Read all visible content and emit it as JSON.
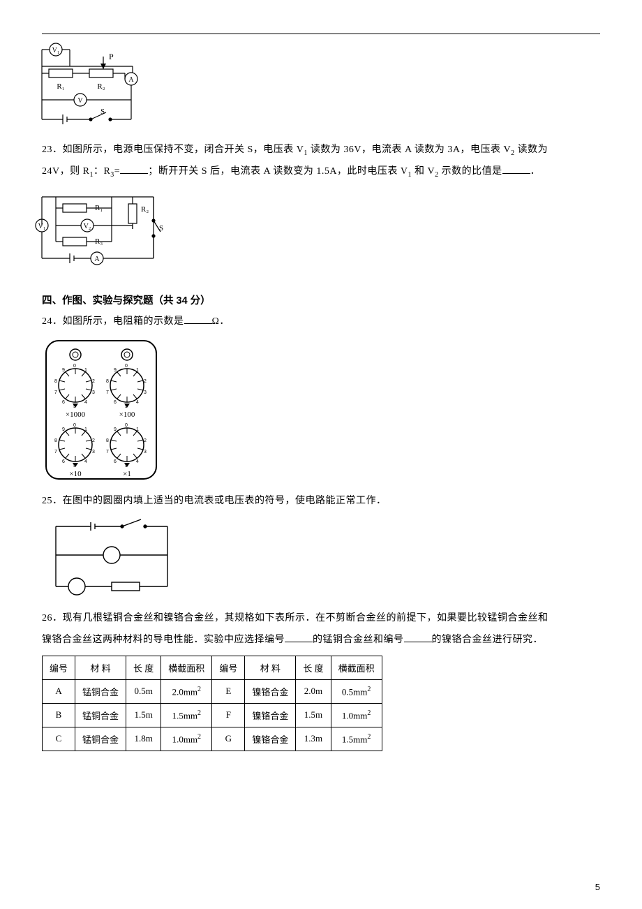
{
  "page_number": "5",
  "circuit22": {
    "labels": {
      "v1": "V₁",
      "p": "P",
      "r1": "R₁",
      "r2": "R₂",
      "a": "A",
      "v": "V",
      "s": "S"
    }
  },
  "q23": {
    "num": "23．",
    "line1_a": "如图所示，电源电压保持不变，闭合开关 S，电压表 V",
    "sub1": "1",
    "line1_b": " 读数为 36V，电流表 A 读数为 3A，电压表 V",
    "sub2": "2",
    "line1_c": " 读数为",
    "line2_a": "24V，则 R",
    "sub_r1": "1",
    "line2_b": "：R",
    "sub_r3": "3",
    "line2_c": "=",
    "line2_d": "；断开开关 S 后，电流表 A 读数变为 1.5A，此时电压表 V",
    "sub_v1b": "1",
    "line2_e": " 和 V",
    "sub_v2b": "2",
    "line2_f": " 示数的比值是",
    "line2_g": "．"
  },
  "circuit23": {
    "labels": {
      "r1": "R₁",
      "r2": "R₂",
      "v1": "V₁",
      "v2": "V₂",
      "s": "S",
      "r3": "R₃",
      "a": "A"
    }
  },
  "section4": "四、作图、实验与探究题（共 34 分）",
  "q24": {
    "num": "24．",
    "text_a": "如图所示，电阻箱的示数是",
    "text_b": "Ω．"
  },
  "resbox": {
    "mult1": "×1000",
    "mult2": "×100",
    "mult3": "×10",
    "mult4": "×1"
  },
  "q25": {
    "num": "25．",
    "text": "在图中的圆圈内填上适当的电流表或电压表的符号，使电路能正常工作．"
  },
  "q26": {
    "num": "26．",
    "line1": "现有几根锰铜合金丝和镍铬合金丝，其规格如下表所示．在不剪断合金丝的前提下，如果要比较锰铜合金丝和",
    "line2_a": "镍铬合金丝这两种材料的导电性能．实验中应选择编号",
    "line2_b": "的锰铜合金丝和编号",
    "line2_c": "的镍铬合金丝进行研究．"
  },
  "table": {
    "headers": [
      "编号",
      "材    料",
      "长  度",
      "横截面积",
      "编号",
      "材    料",
      "长  度",
      "横截面积"
    ],
    "rows": [
      [
        "A",
        "锰铜合金",
        "0.5m",
        "2.0mm",
        "E",
        "镍铬合金",
        "2.0m",
        "0.5mm"
      ],
      [
        "B",
        "锰铜合金",
        "1.5m",
        "1.5mm",
        "F",
        "镍铬合金",
        "1.5m",
        "1.0mm"
      ],
      [
        "C",
        "锰铜合金",
        "1.8m",
        "1.0mm",
        "G",
        "镍铬合金",
        "1.3m",
        "1.5mm"
      ]
    ],
    "area_sup": "2"
  }
}
